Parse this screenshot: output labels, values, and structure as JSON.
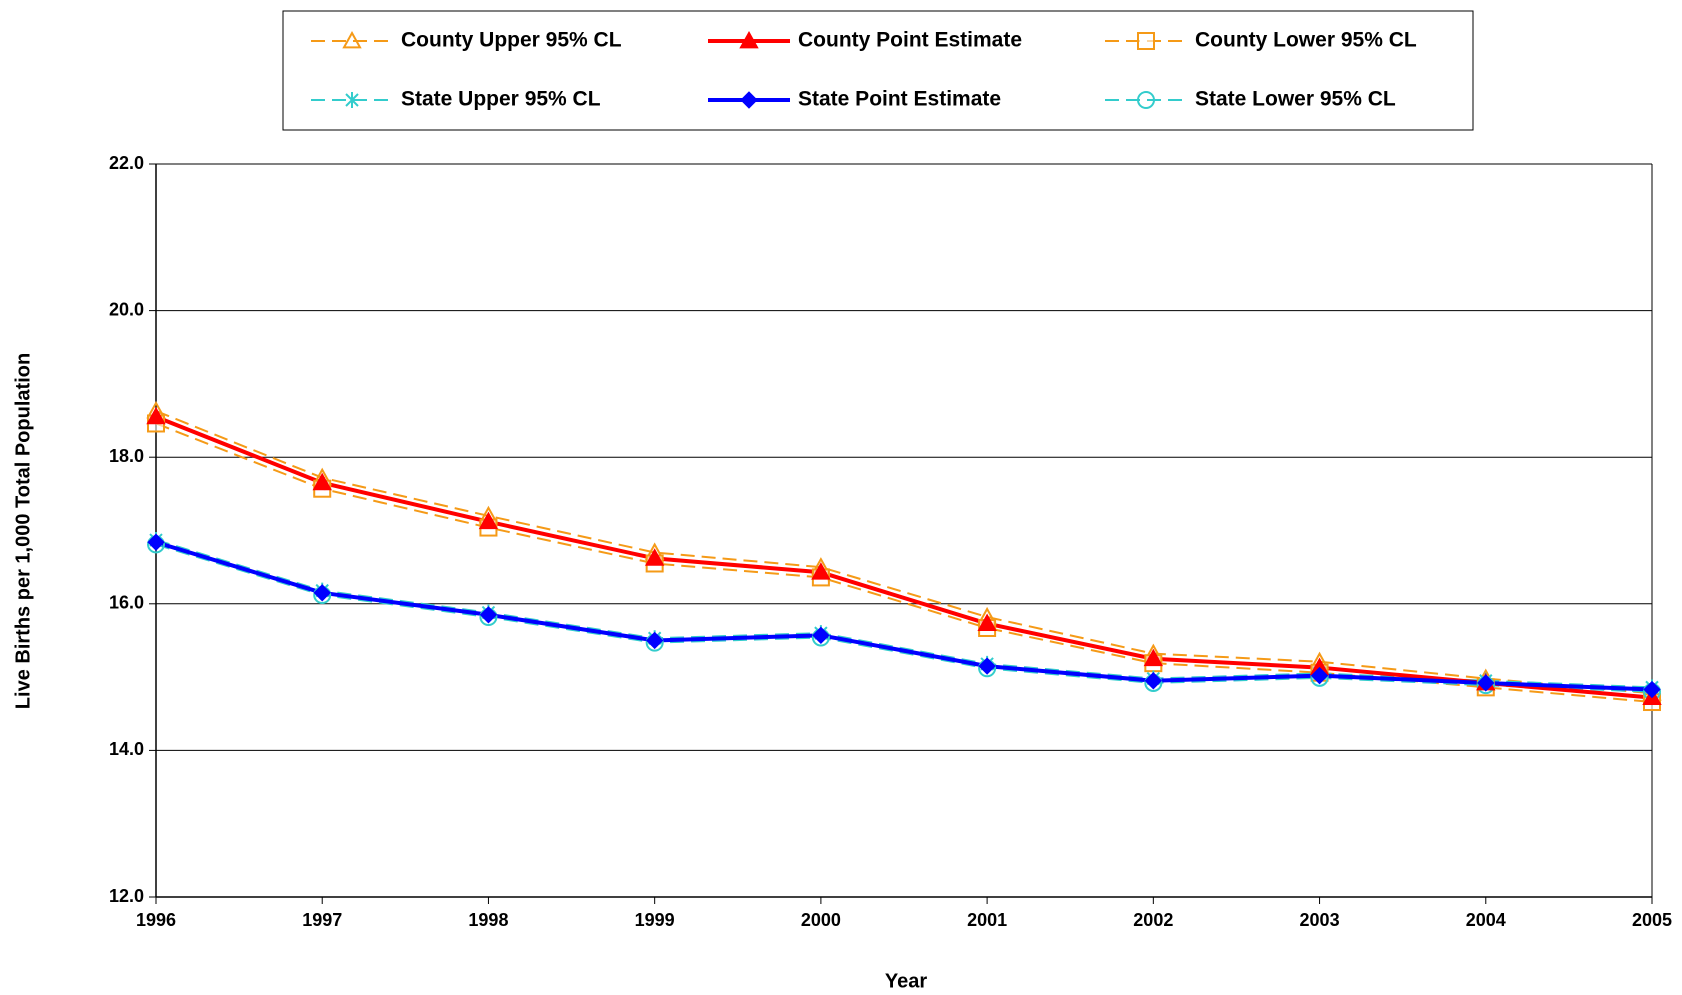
{
  "chart_data": {
    "type": "line",
    "x_label": "Year",
    "y_label": "Live Births per 1,000 Total Population",
    "categories": [
      "1996",
      "1997",
      "1998",
      "1999",
      "2000",
      "2001",
      "2002",
      "2003",
      "2004",
      "2005"
    ],
    "ylim": [
      12,
      22
    ],
    "yticks": [
      {
        "value": 12,
        "label": "12.0"
      },
      {
        "value": 14,
        "label": "14.0"
      },
      {
        "value": 16,
        "label": "16.0"
      },
      {
        "value": 18,
        "label": "18.0"
      },
      {
        "value": 20,
        "label": "20.0"
      },
      {
        "value": 22,
        "label": "22.0"
      }
    ],
    "grid": true,
    "legend": "top",
    "series": [
      {
        "name": "County Upper 95% CL",
        "color": "#f59a17",
        "dashed": true,
        "marker": "triangle",
        "values": [
          18.63,
          17.72,
          17.2,
          16.7,
          16.5,
          15.82,
          15.32,
          15.21,
          14.98,
          14.78
        ]
      },
      {
        "name": "County Point Estimate",
        "color": "#ff0000",
        "dashed": false,
        "marker": "triangle-filled",
        "values": [
          18.55,
          17.65,
          17.12,
          16.62,
          16.43,
          15.73,
          15.25,
          15.13,
          14.92,
          14.72
        ]
      },
      {
        "name": "County Lower 95% CL",
        "color": "#f59a17",
        "dashed": true,
        "marker": "square",
        "values": [
          18.46,
          17.57,
          17.04,
          16.55,
          16.36,
          15.67,
          15.19,
          15.06,
          14.86,
          14.66
        ]
      },
      {
        "name": "State Upper 95% CL",
        "color": "#33cccc",
        "dashed": true,
        "marker": "asterisk",
        "values": [
          16.87,
          16.18,
          15.88,
          15.53,
          15.6,
          15.18,
          14.98,
          15.05,
          14.95,
          14.86
        ]
      },
      {
        "name": "State Point Estimate",
        "color": "#0000ff",
        "dashed": false,
        "marker": "diamond",
        "values": [
          16.84,
          16.15,
          15.85,
          15.5,
          15.57,
          15.15,
          14.95,
          15.02,
          14.92,
          14.83
        ]
      },
      {
        "name": "State Lower 95% CL",
        "color": "#33cccc",
        "dashed": true,
        "marker": "circle",
        "values": [
          16.81,
          16.12,
          15.82,
          15.47,
          15.54,
          15.12,
          14.92,
          14.99,
          14.89,
          14.8
        ]
      }
    ]
  }
}
